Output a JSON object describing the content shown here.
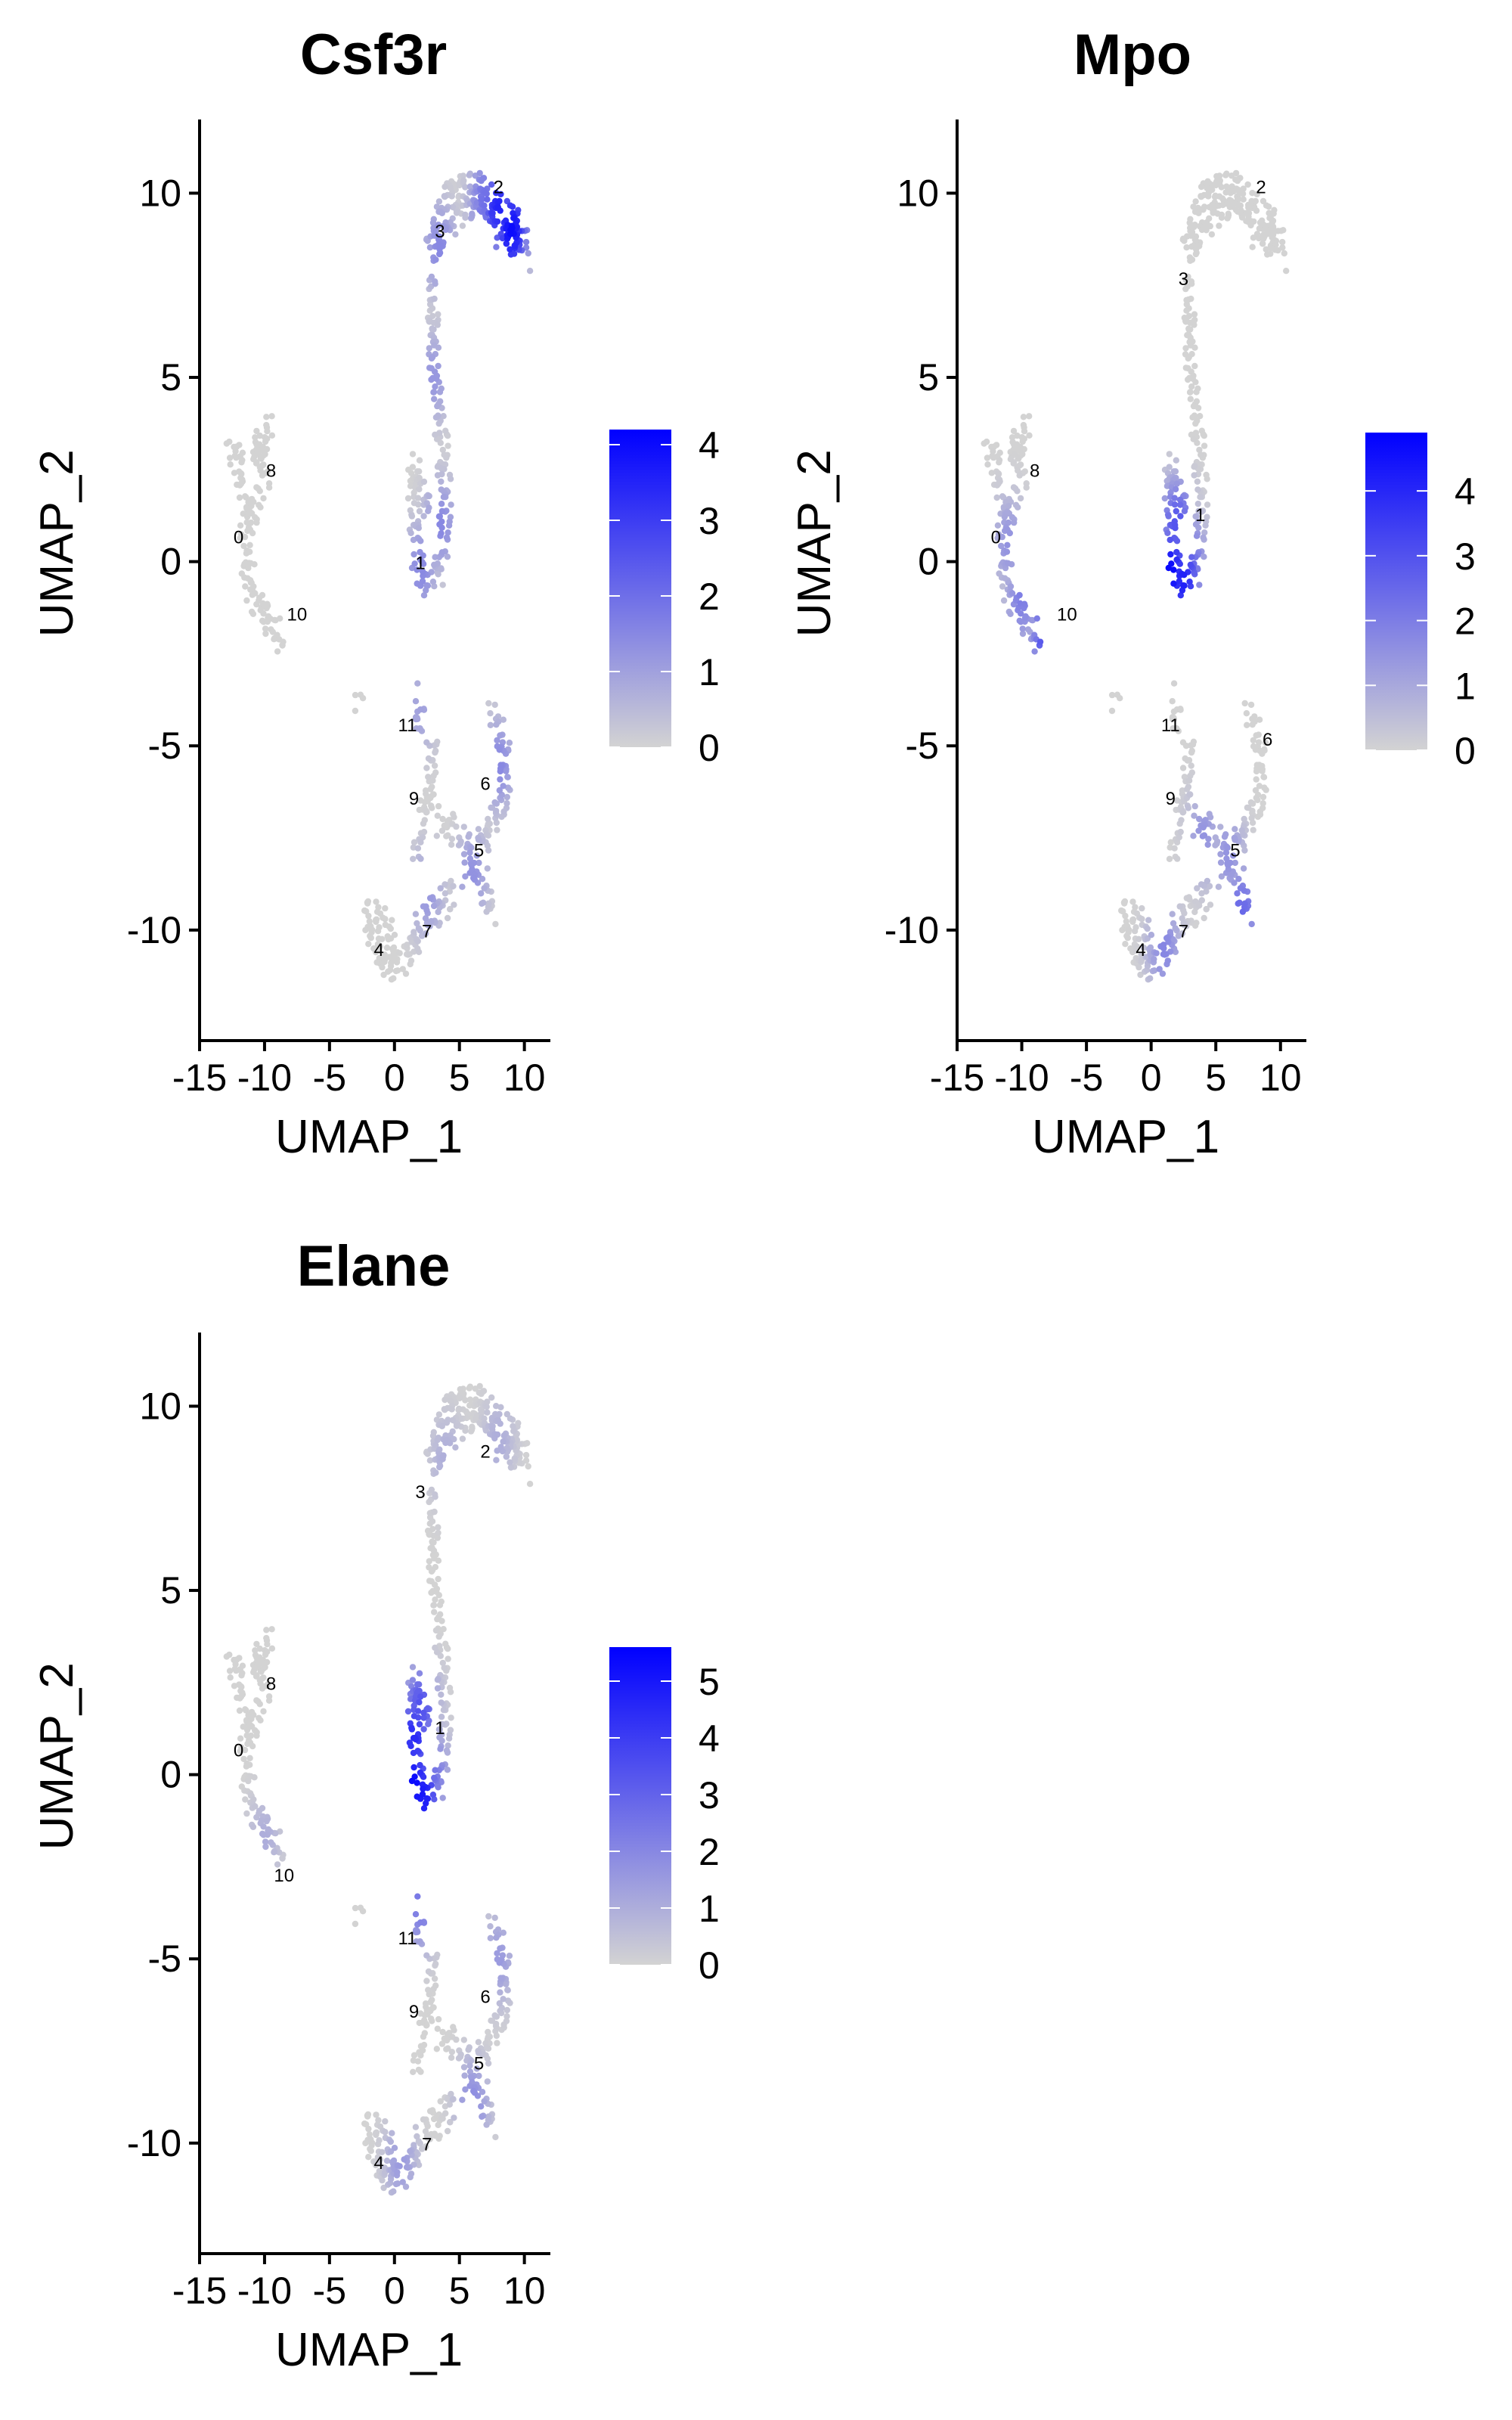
{
  "colors": {
    "low": "#d3d3d3",
    "high": "#0000ff",
    "axis": "#000000"
  },
  "chart_data": [
    {
      "type": "scatter",
      "title": "Csf3r",
      "xlabel": "UMAP_1",
      "ylabel": "UMAP_2",
      "xlim": [
        -15,
        12
      ],
      "ylim": [
        -13,
        12
      ],
      "xticks": [
        -15,
        -10,
        -5,
        0,
        5,
        10
      ],
      "yticks": [
        -10,
        -5,
        0,
        5,
        10
      ],
      "xtick_labels": [
        "-15",
        "-10",
        "-5",
        "0",
        "5",
        "10"
      ],
      "ytick_labels": [
        "-10",
        "-5",
        "0",
        "5",
        "10"
      ],
      "color_scale": {
        "min": 0,
        "max": 4.2,
        "breaks": [
          0,
          1,
          2,
          3,
          4
        ],
        "break_labels": [
          "0",
          "1",
          "2",
          "3",
          "4"
        ]
      },
      "cluster_labels": [
        {
          "text": "0",
          "x": -12,
          "y": 0.5
        },
        {
          "text": "1",
          "x": 2,
          "y": -0.2
        },
        {
          "text": "2",
          "x": 8,
          "y": 10
        },
        {
          "text": "3",
          "x": 3.5,
          "y": 8.8
        },
        {
          "text": "4",
          "x": -1.2,
          "y": -10.7
        },
        {
          "text": "5",
          "x": 6.5,
          "y": -8
        },
        {
          "text": "6",
          "x": 7,
          "y": -6.2
        },
        {
          "text": "7",
          "x": 2.5,
          "y": -10.2
        },
        {
          "text": "8",
          "x": -9.5,
          "y": 2.3
        },
        {
          "text": "9",
          "x": 1.5,
          "y": -6.6
        },
        {
          "text": "10",
          "x": -7.5,
          "y": -1.6
        },
        {
          "text": "11",
          "x": 1,
          "y": -4.6
        }
      ],
      "expression_hotspots": [
        {
          "x": 9,
          "y": 9,
          "level": 4.0
        },
        {
          "x": 8,
          "y": 9.6,
          "level": 3.5
        },
        {
          "x": 7,
          "y": 9.8,
          "level": 2.0
        },
        {
          "x": 3.5,
          "y": 8.5,
          "level": 1.5
        },
        {
          "x": 3,
          "y": 5,
          "level": 1.2
        },
        {
          "x": 3.5,
          "y": 1,
          "level": 1.5
        },
        {
          "x": 2,
          "y": -0.2,
          "level": 1.5
        },
        {
          "x": 8,
          "y": -5.5,
          "level": 1.5
        },
        {
          "x": 6,
          "y": -8.5,
          "level": 1.3
        },
        {
          "x": 2.5,
          "y": -9,
          "level": 1.2
        },
        {
          "x": 2,
          "y": -4,
          "level": 1.0
        }
      ]
    },
    {
      "type": "scatter",
      "title": "Mpo",
      "xlabel": "UMAP_1",
      "ylabel": "UMAP_2",
      "xlim": [
        -15,
        12
      ],
      "ylim": [
        -13,
        12
      ],
      "xticks": [
        -15,
        -10,
        -5,
        0,
        5,
        10
      ],
      "yticks": [
        -10,
        -5,
        0,
        5,
        10
      ],
      "xtick_labels": [
        "-15",
        "-10",
        "-5",
        "0",
        "5",
        "10"
      ],
      "ytick_labels": [
        "-10",
        "-5",
        "0",
        "5",
        "10"
      ],
      "color_scale": {
        "min": 0,
        "max": 4.9,
        "breaks": [
          0,
          1,
          2,
          3,
          4
        ],
        "break_labels": [
          "0",
          "1",
          "2",
          "3",
          "4"
        ]
      },
      "cluster_labels": [
        {
          "text": "0",
          "x": -12,
          "y": 0.5
        },
        {
          "text": "1",
          "x": 3.8,
          "y": 1.1
        },
        {
          "text": "2",
          "x": 8.5,
          "y": 10
        },
        {
          "text": "3",
          "x": 2.5,
          "y": 7.5
        },
        {
          "text": "4",
          "x": -0.8,
          "y": -10.7
        },
        {
          "text": "5",
          "x": 6.5,
          "y": -8
        },
        {
          "text": "6",
          "x": 9,
          "y": -5
        },
        {
          "text": "7",
          "x": 2.5,
          "y": -10.2
        },
        {
          "text": "8",
          "x": -9,
          "y": 2.3
        },
        {
          "text": "9",
          "x": 1.5,
          "y": -6.6
        },
        {
          "text": "10",
          "x": -6.5,
          "y": -1.6
        },
        {
          "text": "11",
          "x": 1.5,
          "y": -4.6
        }
      ],
      "expression_hotspots": [
        {
          "x": 1.5,
          "y": -0.3,
          "level": 4.8
        },
        {
          "x": 2.5,
          "y": -0.5,
          "level": 4.2
        },
        {
          "x": 2,
          "y": 1,
          "level": 3.0
        },
        {
          "x": 3,
          "y": 0,
          "level": 2.5
        },
        {
          "x": -8,
          "y": -2,
          "level": 3.5
        },
        {
          "x": -10,
          "y": -1,
          "level": 2.0
        },
        {
          "x": -11,
          "y": 0.5,
          "level": 1.5
        },
        {
          "x": 7,
          "y": -9.5,
          "level": 2.5
        },
        {
          "x": 6,
          "y": -8,
          "level": 1.5
        },
        {
          "x": 1,
          "y": -10.5,
          "level": 1.8
        },
        {
          "x": 4,
          "y": -7.5,
          "level": 1.5
        }
      ]
    },
    {
      "type": "scatter",
      "title": "Elane",
      "xlabel": "UMAP_1",
      "ylabel": "UMAP_2",
      "xlim": [
        -15,
        12
      ],
      "ylim": [
        -13,
        12
      ],
      "xticks": [
        -15,
        -10,
        -5,
        0,
        5,
        10
      ],
      "yticks": [
        -10,
        -5,
        0,
        5,
        10
      ],
      "xtick_labels": [
        "-15",
        "-10",
        "-5",
        "0",
        "5",
        "10"
      ],
      "ytick_labels": [
        "-10",
        "-5",
        "0",
        "5",
        "10"
      ],
      "color_scale": {
        "min": 0,
        "max": 5.6,
        "breaks": [
          0,
          1,
          2,
          3,
          4,
          5
        ],
        "break_labels": [
          "0",
          "1",
          "2",
          "3",
          "4",
          "5"
        ]
      },
      "cluster_labels": [
        {
          "text": "0",
          "x": -12,
          "y": 0.5
        },
        {
          "text": "1",
          "x": 3.5,
          "y": 1.1
        },
        {
          "text": "2",
          "x": 7,
          "y": 8.6
        },
        {
          "text": "3",
          "x": 2,
          "y": 7.5
        },
        {
          "text": "4",
          "x": -1.2,
          "y": -10.7
        },
        {
          "text": "5",
          "x": 6.5,
          "y": -8
        },
        {
          "text": "6",
          "x": 7,
          "y": -6.2
        },
        {
          "text": "7",
          "x": 2.5,
          "y": -10.2
        },
        {
          "text": "8",
          "x": -9.5,
          "y": 2.3
        },
        {
          "text": "9",
          "x": 1.5,
          "y": -6.6
        },
        {
          "text": "10",
          "x": -8.5,
          "y": -2.9
        },
        {
          "text": "11",
          "x": 1,
          "y": -4.6
        }
      ],
      "expression_hotspots": [
        {
          "x": 1.5,
          "y": -0.3,
          "level": 5.5
        },
        {
          "x": 2.2,
          "y": -0.6,
          "level": 5.0
        },
        {
          "x": 1.5,
          "y": 1,
          "level": 4.5
        },
        {
          "x": 2,
          "y": 1.8,
          "level": 3.5
        },
        {
          "x": 3,
          "y": 0,
          "level": 2.5
        },
        {
          "x": 2,
          "y": -3.5,
          "level": 2.5
        },
        {
          "x": 6,
          "y": -9,
          "level": 2.0
        },
        {
          "x": 8,
          "y": -5,
          "level": 1.5
        },
        {
          "x": 0.5,
          "y": -10.5,
          "level": 1.5
        },
        {
          "x": 4,
          "y": 8.5,
          "level": 1.0
        },
        {
          "x": 8,
          "y": 9,
          "level": 1.0
        },
        {
          "x": -10,
          "y": -1.8,
          "level": 1.0
        }
      ]
    }
  ]
}
